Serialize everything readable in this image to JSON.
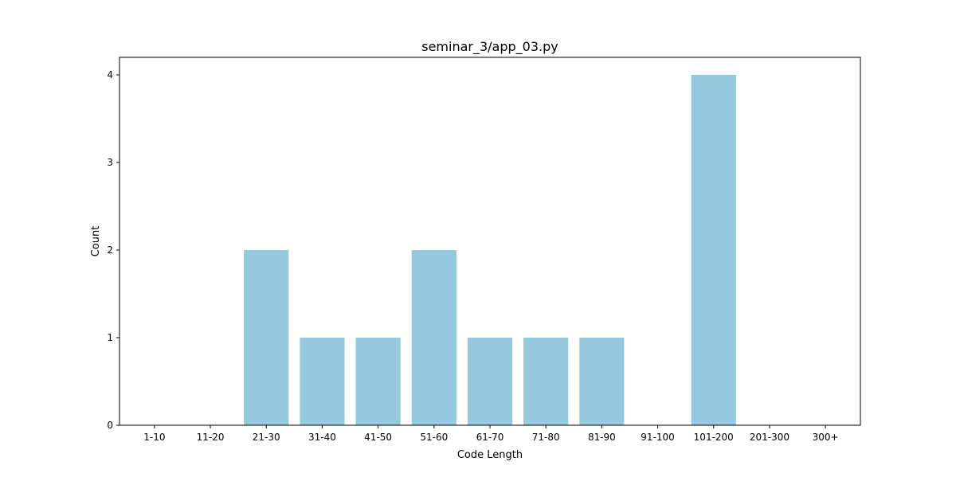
{
  "chart_data": {
    "type": "bar",
    "title": "seminar_3/app_03.py",
    "xlabel": "Code Length",
    "ylabel": "Count",
    "categories": [
      "1-10",
      "11-20",
      "21-30",
      "31-40",
      "41-50",
      "51-60",
      "61-70",
      "71-80",
      "81-90",
      "91-100",
      "101-200",
      "201-300",
      "300+"
    ],
    "values": [
      0,
      0,
      2,
      1,
      1,
      2,
      1,
      1,
      1,
      0,
      4,
      0,
      0
    ],
    "ylim": [
      0,
      4.2
    ],
    "yticks": [
      0,
      1,
      2,
      3,
      4
    ],
    "grid": false,
    "bar_color": "#96c9dd"
  }
}
